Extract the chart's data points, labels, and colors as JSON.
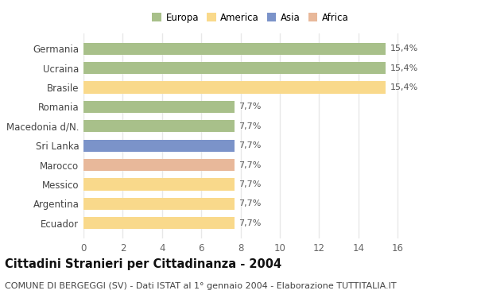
{
  "categories": [
    "Ecuador",
    "Argentina",
    "Messico",
    "Marocco",
    "Sri Lanka",
    "Macedonia d/N.",
    "Romania",
    "Brasile",
    "Ucraina",
    "Germania"
  ],
  "values": [
    7.7,
    7.7,
    7.7,
    7.7,
    7.7,
    7.7,
    7.7,
    15.4,
    15.4,
    15.4
  ],
  "labels": [
    "7,7%",
    "7,7%",
    "7,7%",
    "7,7%",
    "7,7%",
    "7,7%",
    "7,7%",
    "15,4%",
    "15,4%",
    "15,4%"
  ],
  "colors": [
    "#f9d98b",
    "#f9d98b",
    "#f9d98b",
    "#e8b89a",
    "#7b93c9",
    "#a8c08a",
    "#a8c08a",
    "#f9d98b",
    "#a8c08a",
    "#a8c08a"
  ],
  "legend": [
    {
      "label": "Europa",
      "color": "#a8c08a"
    },
    {
      "label": "America",
      "color": "#f9d98b"
    },
    {
      "label": "Asia",
      "color": "#7b93c9"
    },
    {
      "label": "Africa",
      "color": "#e8b89a"
    }
  ],
  "title": "Cittadini Stranieri per Cittadinanza - 2004",
  "subtitle": "COMUNE DI BERGEGGI (SV) - Dati ISTAT al 1° gennaio 2004 - Elaborazione TUTTITALIA.IT",
  "xlim": [
    0,
    17
  ],
  "xticks": [
    0,
    2,
    4,
    6,
    8,
    10,
    12,
    14,
    16
  ],
  "background_color": "#ffffff",
  "grid_color": "#e8e8e8",
  "bar_height": 0.62,
  "title_fontsize": 10.5,
  "subtitle_fontsize": 8,
  "label_fontsize": 8,
  "tick_fontsize": 8.5,
  "legend_fontsize": 8.5
}
